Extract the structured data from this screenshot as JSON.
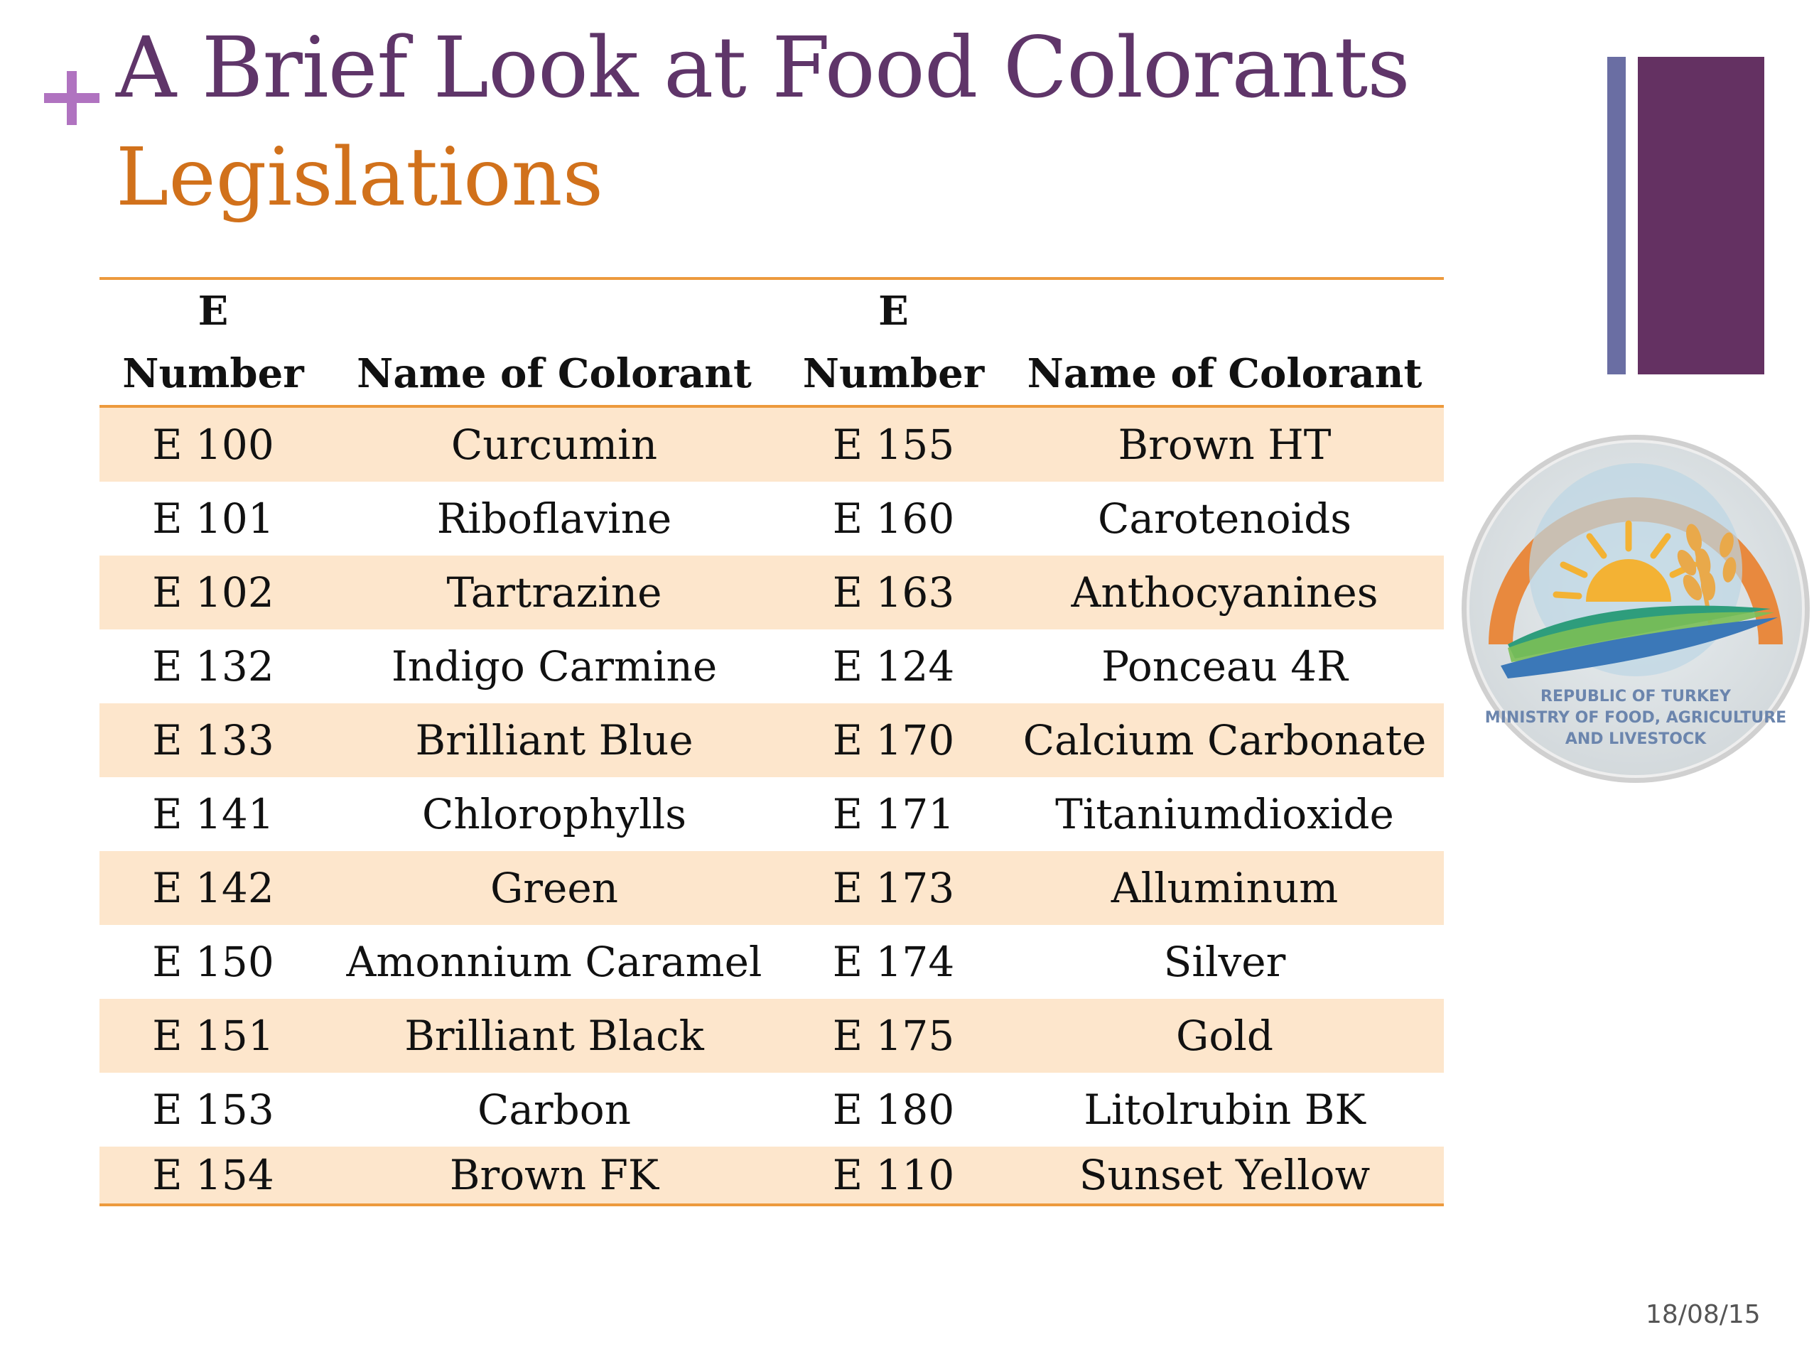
{
  "slide": {
    "title": "A Brief Look at Food Colorants",
    "subtitle": "Legislations",
    "date": "18/08/15"
  },
  "table": {
    "headers": [
      [
        "E",
        "Number"
      ],
      [
        "Name of Colorant"
      ],
      [
        "E",
        "Number"
      ],
      [
        "Name of Colorant"
      ]
    ],
    "rows": [
      [
        "E 100",
        "Curcumin",
        "E 155",
        "Brown HT"
      ],
      [
        "E 101",
        "Riboflavine",
        "E 160",
        "Carotenoids"
      ],
      [
        "E 102",
        "Tartrazine",
        "E 163",
        "Anthocyanines"
      ],
      [
        "E 132",
        "Indigo Carmine",
        "E 124",
        "Ponceau  4R"
      ],
      [
        "E 133",
        "Brilliant Blue",
        "E 170",
        "Calcium Carbonate"
      ],
      [
        "E 141",
        "Chlorophylls",
        "E 171",
        "Titaniumdioxide"
      ],
      [
        "E 142",
        "Green",
        "E 173",
        "Alluminum"
      ],
      [
        "E 150",
        "Amonnium Caramel",
        "E 174",
        "Silver"
      ],
      [
        "E 151",
        "Brilliant Black",
        "E 175",
        "Gold"
      ],
      [
        "E 153",
        "Carbon",
        "E 180",
        "Litolrubin BK"
      ],
      [
        "E 154",
        "Brown FK",
        "E 110",
        "Sunset Yellow"
      ]
    ]
  },
  "emblem": {
    "line1": "REPUBLIC OF TURKEY",
    "line2": "MINISTRY OF FOOD, AGRICULTURE",
    "line3": "AND LIVESTOCK"
  },
  "colors": {
    "title": "#5f3569",
    "subtitle": "#d1711b",
    "accent_plus": "#b073c0",
    "table_rule": "#ed9a3d",
    "row_band": "#fde6cc",
    "bar_thin": "#6a6ea3",
    "bar_thick": "#643162"
  }
}
